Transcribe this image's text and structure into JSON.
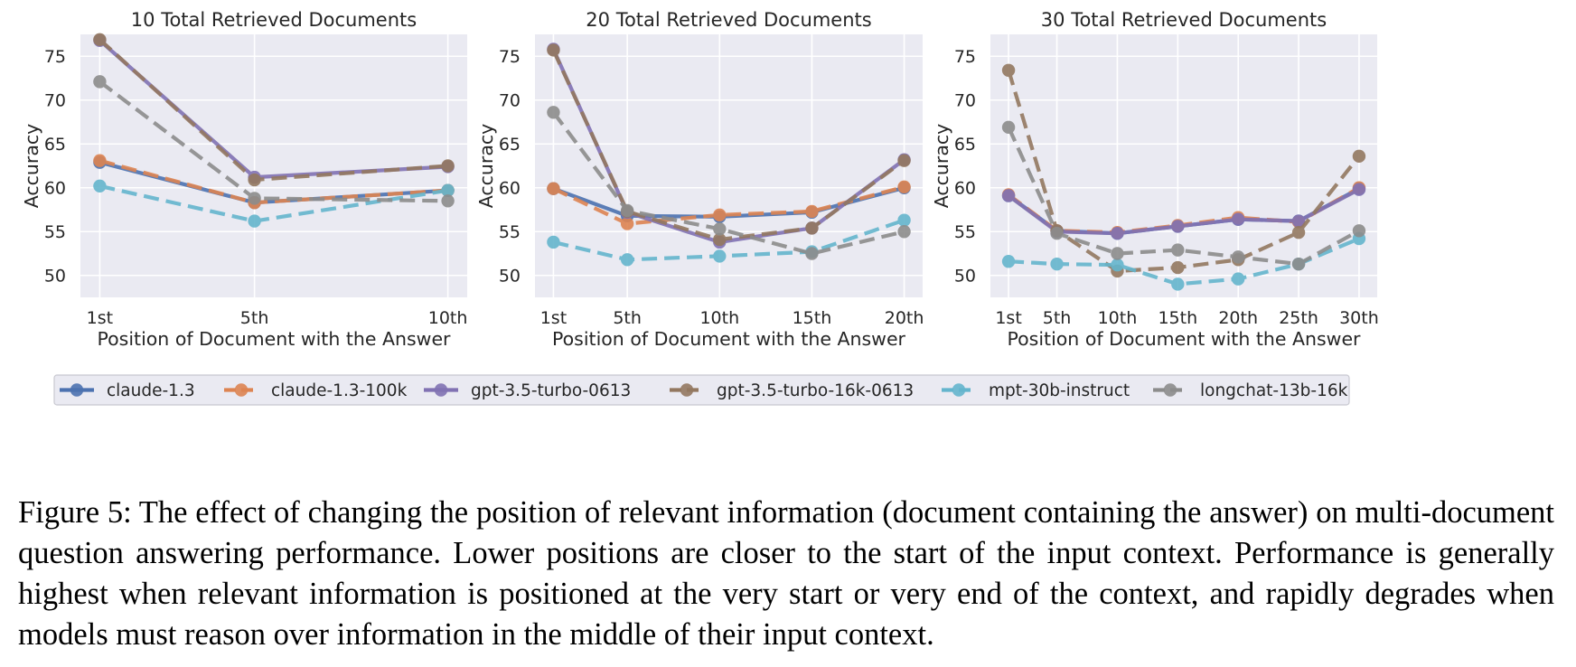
{
  "chart_data": [
    {
      "type": "line",
      "title": "10 Total Retrieved Documents",
      "xlabel": "Position of Document with the Answer",
      "ylabel": "Accuracy",
      "x": [
        1,
        5,
        10
      ],
      "x_tick_labels": [
        "1st",
        "5th",
        "10th"
      ],
      "xlim": [
        0.5,
        10.5
      ],
      "ylim": [
        47.5,
        77.5
      ],
      "y_ticks": [
        50,
        55,
        60,
        65,
        70,
        75
      ],
      "grid": true,
      "series": [
        {
          "name": "claude-1.3",
          "values": [
            62.9,
            58.3,
            59.7
          ]
        },
        {
          "name": "claude-1.3-100k",
          "values": [
            63.1,
            58.3,
            59.7
          ]
        },
        {
          "name": "gpt-3.5-turbo-0613",
          "values": [
            76.8,
            61.2,
            62.4
          ]
        },
        {
          "name": "gpt-3.5-turbo-16k-0613",
          "values": [
            76.9,
            60.9,
            62.5
          ]
        },
        {
          "name": "mpt-30b-instruct",
          "values": [
            60.2,
            56.2,
            59.7
          ]
        },
        {
          "name": "longchat-13b-16k",
          "values": [
            72.1,
            58.8,
            58.5
          ]
        }
      ]
    },
    {
      "type": "line",
      "title": "20 Total Retrieved Documents",
      "xlabel": "Position of Document with the Answer",
      "ylabel": "Accuracy",
      "x": [
        1,
        5,
        10,
        15,
        20
      ],
      "x_tick_labels": [
        "1st",
        "5th",
        "10th",
        "15th",
        "20th"
      ],
      "xlim": [
        0.0,
        21.0
      ],
      "ylim": [
        47.5,
        77.5
      ],
      "y_ticks": [
        50,
        55,
        60,
        65,
        70,
        75
      ],
      "grid": true,
      "series": [
        {
          "name": "claude-1.3",
          "values": [
            59.9,
            56.8,
            56.7,
            57.2,
            60.0
          ]
        },
        {
          "name": "claude-1.3-100k",
          "values": [
            59.9,
            55.9,
            56.9,
            57.3,
            60.1
          ]
        },
        {
          "name": "gpt-3.5-turbo-0613",
          "values": [
            75.8,
            57.2,
            53.8,
            55.4,
            63.2
          ]
        },
        {
          "name": "gpt-3.5-turbo-16k-0613",
          "values": [
            75.7,
            57.3,
            54.1,
            55.4,
            63.1
          ]
        },
        {
          "name": "mpt-30b-instruct",
          "values": [
            53.8,
            51.8,
            52.2,
            52.7,
            56.3
          ]
        },
        {
          "name": "longchat-13b-16k",
          "values": [
            68.6,
            57.4,
            55.3,
            52.5,
            55.0
          ]
        }
      ]
    },
    {
      "type": "line",
      "title": "30 Total Retrieved Documents",
      "xlabel": "Position of Document with the Answer",
      "ylabel": "Accuracy",
      "x": [
        1,
        5,
        10,
        15,
        20,
        25,
        30
      ],
      "x_tick_labels": [
        "1st",
        "5th",
        "10th",
        "15th",
        "20th",
        "25th",
        "30th"
      ],
      "xlim": [
        -0.5,
        31.5
      ],
      "ylim": [
        47.5,
        77.5
      ],
      "y_ticks": [
        50,
        55,
        60,
        65,
        70,
        75
      ],
      "grid": true,
      "series": [
        {
          "name": "claude-1.3",
          "values": [
            59.1,
            55.1,
            54.8,
            55.6,
            56.4,
            56.2,
            59.9
          ]
        },
        {
          "name": "claude-1.3-100k",
          "values": [
            59.2,
            55.1,
            54.9,
            55.7,
            56.6,
            56.1,
            60.0
          ]
        },
        {
          "name": "gpt-3.5-turbo-0613",
          "values": [
            59.1,
            55.0,
            54.8,
            55.6,
            56.4,
            56.2,
            59.8
          ]
        },
        {
          "name": "gpt-3.5-turbo-16k-0613",
          "values": [
            73.4,
            55.1,
            50.5,
            50.9,
            51.8,
            54.9,
            63.6
          ]
        },
        {
          "name": "mpt-30b-instruct",
          "values": [
            51.6,
            51.3,
            51.2,
            49.0,
            49.6,
            51.3,
            54.2
          ]
        },
        {
          "name": "longchat-13b-16k",
          "values": [
            66.9,
            54.8,
            52.5,
            52.9,
            52.1,
            51.3,
            55.1
          ]
        }
      ]
    }
  ],
  "legend": {
    "placement": "bottom-center",
    "entries": [
      {
        "name": "claude-1.3",
        "color": "#4c72b0",
        "dash": false
      },
      {
        "name": "claude-1.3-100k",
        "color": "#dd8452",
        "dash": true
      },
      {
        "name": "gpt-3.5-turbo-0613",
        "color": "#8172b3",
        "dash": false
      },
      {
        "name": "gpt-3.5-turbo-16k-0613",
        "color": "#937860",
        "dash": true
      },
      {
        "name": "mpt-30b-instruct",
        "color": "#64b5cd",
        "dash": true
      },
      {
        "name": "longchat-13b-16k",
        "color": "#8c8c8c",
        "dash": true
      }
    ]
  },
  "caption": {
    "label": "Figure 5:",
    "text": "The effect of changing the position of relevant information (document containing the answer) on multi-document question answering performance. Lower positions are closer to the start of the input context. Performance is generally highest when relevant information is positioned at the very start or very end of the context, and rapidly degrades when models must reason over information in the middle of their input context."
  }
}
